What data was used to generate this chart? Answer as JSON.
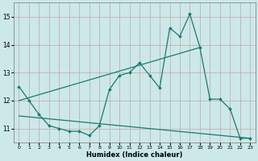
{
  "xlabel": "Humidex (Indice chaleur)",
  "series1_x": [
    0,
    1,
    2,
    3,
    4,
    5,
    6,
    7,
    8,
    9,
    10,
    11,
    12,
    13,
    14,
    15,
    16,
    17,
    18,
    19,
    20,
    21,
    22,
    23
  ],
  "series1_y": [
    12.5,
    12.0,
    11.5,
    11.1,
    11.0,
    10.9,
    10.9,
    10.75,
    11.1,
    12.4,
    12.9,
    13.0,
    13.35,
    12.9,
    12.45,
    14.6,
    14.3,
    15.1,
    13.9,
    12.05,
    12.05,
    11.7,
    10.65,
    10.65
  ],
  "series2_x": [
    0,
    18
  ],
  "series2_y": [
    12.0,
    13.9
  ],
  "series3_x": [
    0,
    23
  ],
  "series3_y": [
    11.45,
    10.65
  ],
  "color": "#1a7a6e",
  "bg_color": "#cce8e8",
  "grid_color": "#c0a8a8",
  "ylim": [
    10.5,
    15.5
  ],
  "xlim": [
    -0.5,
    23.5
  ],
  "yticks": [
    11,
    12,
    13,
    14,
    15
  ],
  "xticks": [
    0,
    1,
    2,
    3,
    4,
    5,
    6,
    7,
    8,
    9,
    10,
    11,
    12,
    13,
    14,
    15,
    16,
    17,
    18,
    19,
    20,
    21,
    22,
    23
  ]
}
